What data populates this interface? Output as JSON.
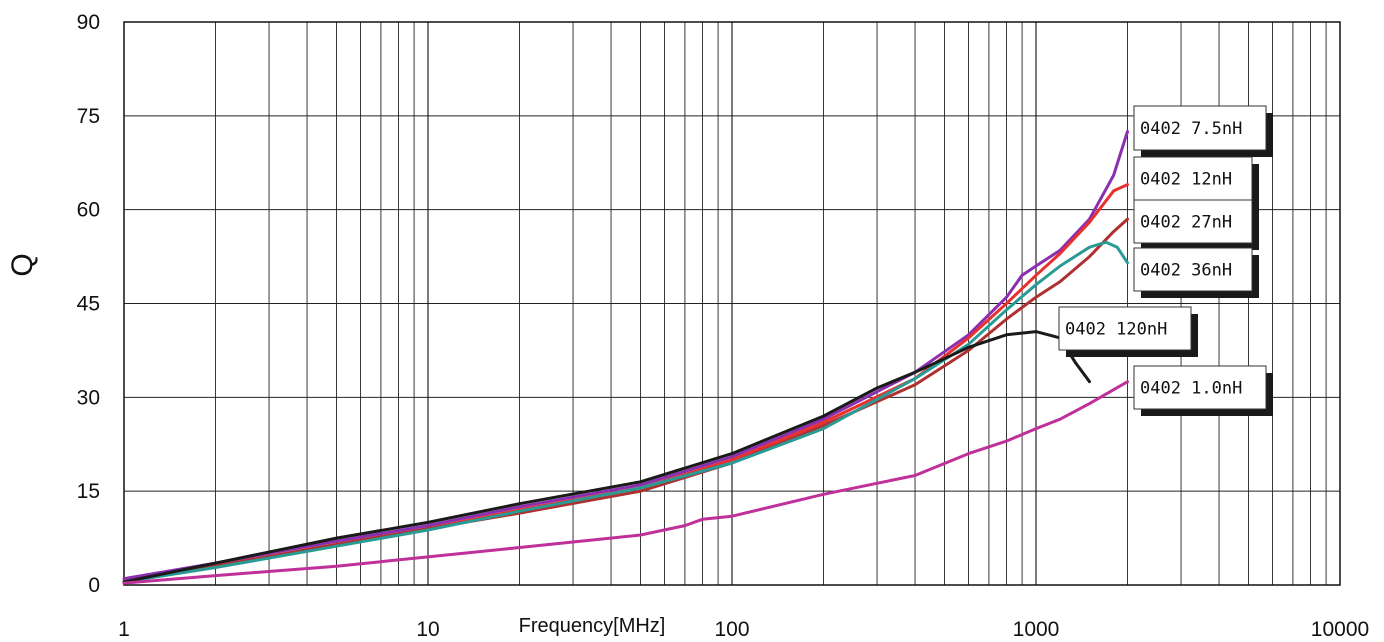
{
  "chart_data": {
    "type": "line",
    "title": "",
    "xlabel": "Frequency[MHz]",
    "ylabel": "Q",
    "x_scale": "log",
    "xlim": [
      1,
      10000
    ],
    "ylim": [
      0,
      90
    ],
    "x_ticks": [
      "1",
      "10",
      "100",
      "1000",
      "10000"
    ],
    "y_ticks": [
      "0",
      "15",
      "30",
      "45",
      "60",
      "75",
      "90"
    ],
    "grid": true,
    "legend": "inline-tags-right",
    "series": [
      {
        "name": "0402 7.5nH",
        "color": "#8b2fb0",
        "x": [
          1,
          2,
          5,
          10,
          20,
          50,
          100,
          200,
          400,
          600,
          800,
          900,
          1000,
          1200,
          1500,
          1800,
          2000
        ],
        "y": [
          1,
          3.5,
          7,
          9.5,
          12.5,
          16,
          20.5,
          26.5,
          34,
          40,
          46,
          49.5,
          51,
          53.5,
          58.5,
          65.5,
          72.5
        ]
      },
      {
        "name": "0402 12nH",
        "color": "#e8312f",
        "x": [
          1,
          2,
          5,
          10,
          20,
          50,
          100,
          200,
          400,
          600,
          800,
          1000,
          1200,
          1500,
          1800,
          2000
        ],
        "y": [
          0.5,
          3,
          6.5,
          9,
          12,
          15.5,
          20,
          26,
          33,
          39.5,
          45,
          49.5,
          53,
          58,
          63,
          64
        ]
      },
      {
        "name": "0402 27nH",
        "color": "#b03030",
        "x": [
          1,
          2,
          5,
          10,
          20,
          50,
          100,
          200,
          400,
          600,
          800,
          1000,
          1200,
          1500,
          1800,
          2000
        ],
        "y": [
          0.5,
          3,
          6.5,
          9,
          11.5,
          15,
          19.5,
          25.5,
          32,
          37.5,
          42.5,
          46,
          48.5,
          52.5,
          56.5,
          58.5
        ]
      },
      {
        "name": "0402 36nH",
        "color": "#2a9a95",
        "x": [
          1,
          2,
          5,
          10,
          20,
          50,
          100,
          200,
          400,
          600,
          800,
          1000,
          1200,
          1500,
          1700,
          1850,
          2000
        ],
        "y": [
          0.5,
          2.8,
          6.2,
          8.8,
          11.8,
          15.5,
          19.5,
          25,
          33,
          38.5,
          44,
          48,
          51,
          54,
          54.8,
          54,
          51.5
        ]
      },
      {
        "name": "0402 120nH",
        "color": "#1a1a1a",
        "x": [
          1,
          2,
          5,
          10,
          20,
          50,
          100,
          200,
          300,
          400,
          600,
          800,
          1000,
          1200,
          1350,
          1500
        ],
        "y": [
          0.5,
          3.5,
          7.5,
          10,
          13,
          16.5,
          21,
          27,
          31.5,
          34,
          38,
          40,
          40.5,
          39.5,
          35.5,
          32.5
        ]
      },
      {
        "name": "0402 1.0nH",
        "color": "#c0309a",
        "x": [
          1,
          2,
          5,
          10,
          20,
          50,
          70,
          80,
          100,
          200,
          400,
          600,
          800,
          1000,
          1200,
          1500,
          2000
        ],
        "y": [
          0.3,
          1.5,
          3,
          4.5,
          6,
          8,
          9.5,
          10.5,
          11,
          14.5,
          17.5,
          21,
          23,
          25,
          26.5,
          29,
          32.5
        ]
      }
    ]
  }
}
